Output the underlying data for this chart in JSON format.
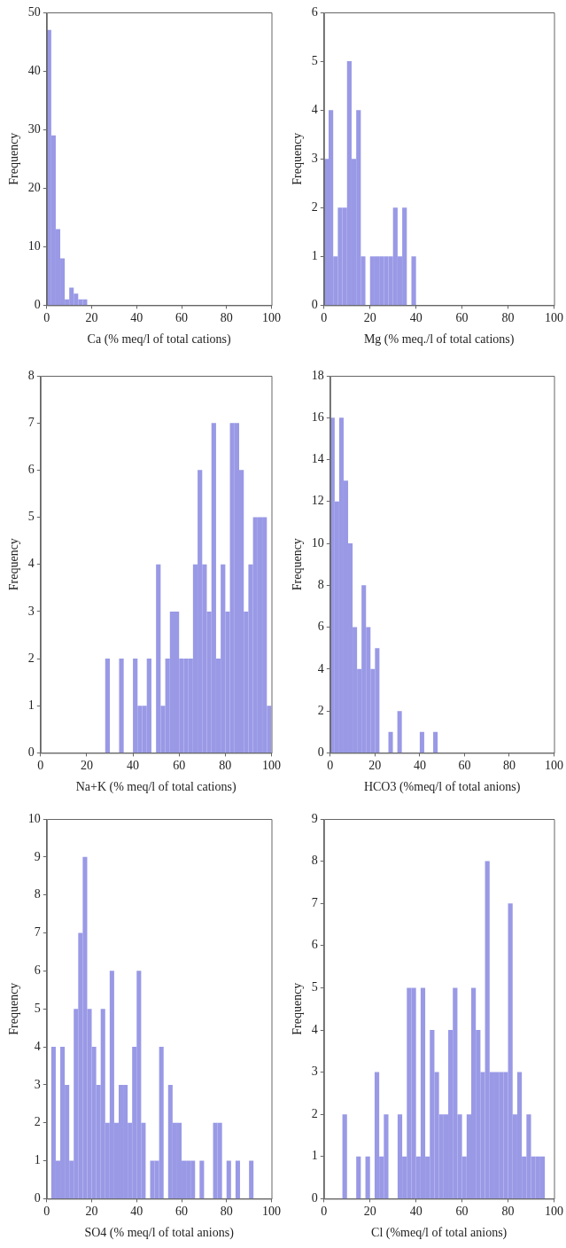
{
  "chart_data": [
    {
      "type": "histogram",
      "xlabel": "Ca (% meq/l of total cations)",
      "ylabel": "Frequency",
      "color": "#9999e6",
      "grid": false,
      "bins": [
        0,
        2,
        4,
        6,
        8,
        10,
        12,
        14,
        16,
        18,
        20,
        22,
        24,
        26,
        28,
        30,
        32,
        34,
        36,
        38,
        40,
        42,
        44,
        46,
        48,
        50,
        52,
        54,
        56,
        58,
        60,
        62,
        64,
        66,
        68,
        70,
        72,
        74,
        76,
        78,
        80,
        82,
        84,
        86,
        88,
        90,
        92,
        94,
        96,
        98,
        100
      ],
      "values": [
        47,
        29,
        13,
        8,
        1,
        3,
        2,
        1,
        1,
        0,
        0,
        0,
        0,
        0,
        0,
        0,
        0,
        0,
        0,
        0,
        0,
        0,
        0,
        0,
        0,
        0,
        0,
        0,
        0,
        0,
        0,
        0,
        0,
        0,
        0,
        0,
        0,
        0,
        0,
        0,
        0,
        0,
        0,
        0,
        0,
        0,
        0,
        0,
        0,
        0
      ],
      "xlim": [
        0,
        100
      ],
      "xticks": [
        0,
        20,
        40,
        60,
        80,
        100
      ],
      "ylim": [
        0,
        50
      ],
      "yticks": [
        0,
        10,
        20,
        30,
        40,
        50
      ]
    },
    {
      "type": "histogram",
      "xlabel": "Mg (% meq./l of total cations)",
      "ylabel": "Frequency",
      "color": "#9999e6",
      "grid": false,
      "bins": [
        0,
        2,
        4,
        6,
        8,
        10,
        12,
        14,
        16,
        18,
        20,
        22,
        24,
        26,
        28,
        30,
        32,
        34,
        36,
        38,
        40,
        42,
        44,
        46,
        48,
        50,
        52,
        54,
        56,
        58,
        60,
        62,
        64,
        66,
        68,
        70,
        72,
        74,
        76,
        78,
        80,
        82,
        84,
        86,
        88,
        90,
        92,
        94,
        96,
        98,
        100
      ],
      "values": [
        3,
        4,
        1,
        2,
        2,
        5,
        3,
        4,
        1,
        0,
        1,
        1,
        1,
        1,
        1,
        2,
        1,
        2,
        0,
        1,
        0,
        0,
        0,
        0,
        0,
        0,
        0,
        0,
        0,
        0,
        0,
        0,
        0,
        0,
        0,
        0,
        0,
        0,
        0,
        0,
        0,
        0,
        0,
        0,
        0,
        0,
        0,
        0,
        0,
        0
      ],
      "xlim": [
        0,
        100
      ],
      "xticks": [
        0,
        20,
        40,
        60,
        80,
        100
      ],
      "ylim": [
        0,
        6
      ],
      "yticks": [
        0,
        1,
        2,
        3,
        4,
        5,
        6
      ]
    },
    {
      "type": "histogram",
      "xlabel": "Na+K (% meq/l of total cations)",
      "ylabel": "Frequency",
      "color": "#9999e6",
      "grid": false,
      "bins": [
        0,
        2,
        4,
        6,
        8,
        10,
        12,
        14,
        16,
        18,
        20,
        22,
        24,
        26,
        28,
        30,
        32,
        34,
        36,
        38,
        40,
        42,
        44,
        46,
        48,
        50,
        52,
        54,
        56,
        58,
        60,
        62,
        64,
        66,
        68,
        70,
        72,
        74,
        76,
        78,
        80,
        82,
        84,
        86,
        88,
        90,
        92,
        94,
        96,
        98,
        100
      ],
      "values": [
        0,
        0,
        0,
        0,
        0,
        0,
        0,
        0,
        0,
        0,
        0,
        0,
        0,
        0,
        2,
        0,
        0,
        2,
        0,
        0,
        2,
        1,
        1,
        2,
        0,
        4,
        1,
        2,
        3,
        3,
        2,
        2,
        2,
        4,
        6,
        4,
        3,
        7,
        2,
        4,
        3,
        7,
        7,
        6,
        3,
        4,
        5,
        5,
        5,
        1
      ],
      "xlim": [
        0,
        100
      ],
      "xticks": [
        0,
        20,
        40,
        60,
        80,
        100
      ],
      "ylim": [
        0,
        8
      ],
      "yticks": [
        0,
        1,
        2,
        3,
        4,
        5,
        6,
        7,
        8
      ]
    },
    {
      "type": "histogram",
      "xlabel": "HCO3 (%meq/l of total anions)",
      "ylabel": "Frequency",
      "color": "#9999e6",
      "grid": false,
      "bins": [
        0,
        2,
        4,
        6,
        8,
        10,
        12,
        14,
        16,
        18,
        20,
        22,
        24,
        26,
        28,
        30,
        32,
        34,
        36,
        38,
        40,
        42,
        44,
        46,
        48,
        50,
        52,
        54,
        56,
        58,
        60,
        62,
        64,
        66,
        68,
        70,
        72,
        74,
        76,
        78,
        80,
        82,
        84,
        86,
        88,
        90,
        92,
        94,
        96,
        98,
        100
      ],
      "values": [
        16,
        12,
        16,
        13,
        10,
        6,
        4,
        8,
        6,
        4,
        5,
        0,
        0,
        1,
        0,
        2,
        0,
        0,
        0,
        0,
        1,
        0,
        0,
        1,
        0,
        0,
        0,
        0,
        0,
        0,
        0,
        0,
        0,
        0,
        0,
        0,
        0,
        0,
        0,
        0,
        0,
        0,
        0,
        0,
        0,
        0,
        0,
        0,
        0,
        0
      ],
      "xlim": [
        0,
        100
      ],
      "xticks": [
        0,
        20,
        40,
        60,
        80,
        100
      ],
      "ylim": [
        0,
        18
      ],
      "yticks": [
        0,
        2,
        4,
        6,
        8,
        10,
        12,
        14,
        16,
        18
      ]
    },
    {
      "type": "histogram",
      "xlabel": "SO4 (% meq/l of total anions)",
      "ylabel": "Frequency",
      "color": "#9999e6",
      "grid": false,
      "bins": [
        0,
        2,
        4,
        6,
        8,
        10,
        12,
        14,
        16,
        18,
        20,
        22,
        24,
        26,
        28,
        30,
        32,
        34,
        36,
        38,
        40,
        42,
        44,
        46,
        48,
        50,
        52,
        54,
        56,
        58,
        60,
        62,
        64,
        66,
        68,
        70,
        72,
        74,
        76,
        78,
        80,
        82,
        84,
        86,
        88,
        90,
        92,
        94,
        96,
        98,
        100
      ],
      "values": [
        0,
        4,
        1,
        4,
        3,
        1,
        5,
        7,
        9,
        5,
        4,
        3,
        5,
        2,
        6,
        2,
        3,
        3,
        2,
        4,
        6,
        2,
        0,
        1,
        1,
        4,
        0,
        3,
        2,
        2,
        1,
        1,
        1,
        0,
        1,
        0,
        0,
        2,
        2,
        0,
        1,
        0,
        1,
        0,
        0,
        1,
        0,
        0,
        0,
        0
      ],
      "xlim": [
        0,
        100
      ],
      "xticks": [
        0,
        20,
        40,
        60,
        80,
        100
      ],
      "ylim": [
        0,
        10
      ],
      "yticks": [
        0,
        1,
        2,
        3,
        4,
        5,
        6,
        7,
        8,
        9,
        10
      ]
    },
    {
      "type": "histogram",
      "xlabel": "Cl (%meq/l of total anions)",
      "ylabel": "Frequency",
      "color": "#9999e6",
      "grid": false,
      "bins": [
        0,
        2,
        4,
        6,
        8,
        10,
        12,
        14,
        16,
        18,
        20,
        22,
        24,
        26,
        28,
        30,
        32,
        34,
        36,
        38,
        40,
        42,
        44,
        46,
        48,
        50,
        52,
        54,
        56,
        58,
        60,
        62,
        64,
        66,
        68,
        70,
        72,
        74,
        76,
        78,
        80,
        82,
        84,
        86,
        88,
        90,
        92,
        94,
        96,
        98,
        100
      ],
      "values": [
        0,
        0,
        0,
        0,
        2,
        0,
        0,
        1,
        0,
        1,
        0,
        3,
        1,
        2,
        0,
        0,
        2,
        1,
        5,
        5,
        1,
        5,
        1,
        4,
        3,
        2,
        2,
        4,
        5,
        2,
        1,
        2,
        5,
        4,
        3,
        8,
        3,
        3,
        3,
        3,
        7,
        2,
        3,
        1,
        2,
        1,
        1,
        1,
        0,
        0
      ],
      "xlim": [
        0,
        100
      ],
      "xticks": [
        0,
        20,
        40,
        60,
        80,
        100
      ],
      "ylim": [
        0,
        9
      ],
      "yticks": [
        0,
        1,
        2,
        3,
        4,
        5,
        6,
        7,
        8,
        9
      ]
    }
  ]
}
